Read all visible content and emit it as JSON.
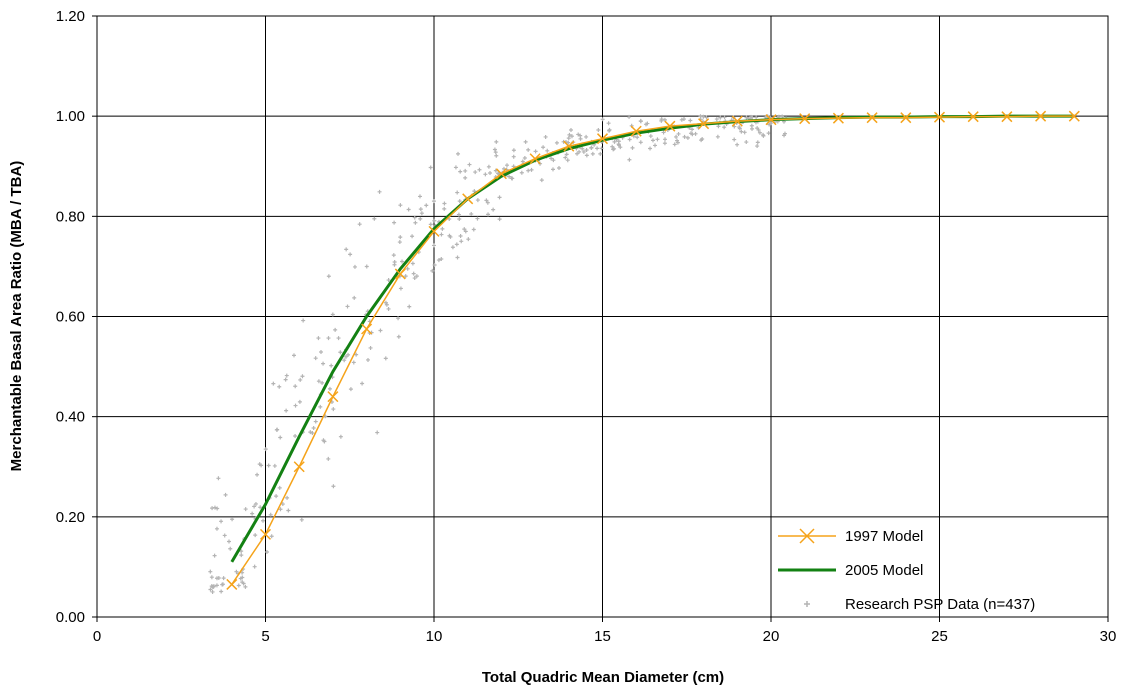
{
  "chart_data": {
    "type": "line",
    "xlabel": "Total Quadric Mean Diameter (cm)",
    "ylabel": "Merchantable Basal Area Ratio (MBA / TBA)",
    "xlim": [
      0,
      30
    ],
    "ylim": [
      0,
      1.2
    ],
    "x_ticks": [
      "0",
      "5",
      "10",
      "15",
      "20",
      "25",
      "30"
    ],
    "y_ticks": [
      "0.00",
      "0.20",
      "0.40",
      "0.60",
      "0.80",
      "1.00",
      "1.20"
    ],
    "grid": true,
    "legend_position": "bottom-right",
    "series": [
      {
        "name": "1997 Model",
        "color": "#f5a31a",
        "marker": "x",
        "x": [
          4,
          5,
          6,
          7,
          8,
          9,
          10,
          11,
          12,
          13,
          14,
          15,
          16,
          17,
          18,
          19,
          20,
          21,
          22,
          23,
          24,
          25,
          26,
          27,
          28,
          29
        ],
        "y": [
          0.065,
          0.165,
          0.3,
          0.44,
          0.575,
          0.685,
          0.77,
          0.835,
          0.885,
          0.915,
          0.94,
          0.955,
          0.97,
          0.98,
          0.985,
          0.99,
          0.993,
          0.995,
          0.996,
          0.997,
          0.997,
          0.998,
          0.999,
          0.999,
          1.0,
          1.0
        ]
      },
      {
        "name": "2005 Model",
        "color": "#138113",
        "x": [
          4,
          5,
          6,
          7,
          8,
          9,
          10,
          11,
          12,
          13,
          14,
          15,
          16,
          17,
          18,
          19,
          20,
          21,
          22,
          23,
          24,
          25,
          26,
          27,
          28,
          29
        ],
        "y": [
          0.11,
          0.225,
          0.36,
          0.49,
          0.6,
          0.695,
          0.775,
          0.835,
          0.88,
          0.912,
          0.935,
          0.952,
          0.966,
          0.976,
          0.984,
          0.989,
          0.993,
          0.995,
          0.997,
          0.998,
          0.998,
          0.999,
          0.999,
          1.0,
          1.0,
          1.0
        ]
      }
    ],
    "scatter": {
      "name": "Research PSP Data (n=437)",
      "color": "#b4b4b4",
      "n": 437
    }
  }
}
